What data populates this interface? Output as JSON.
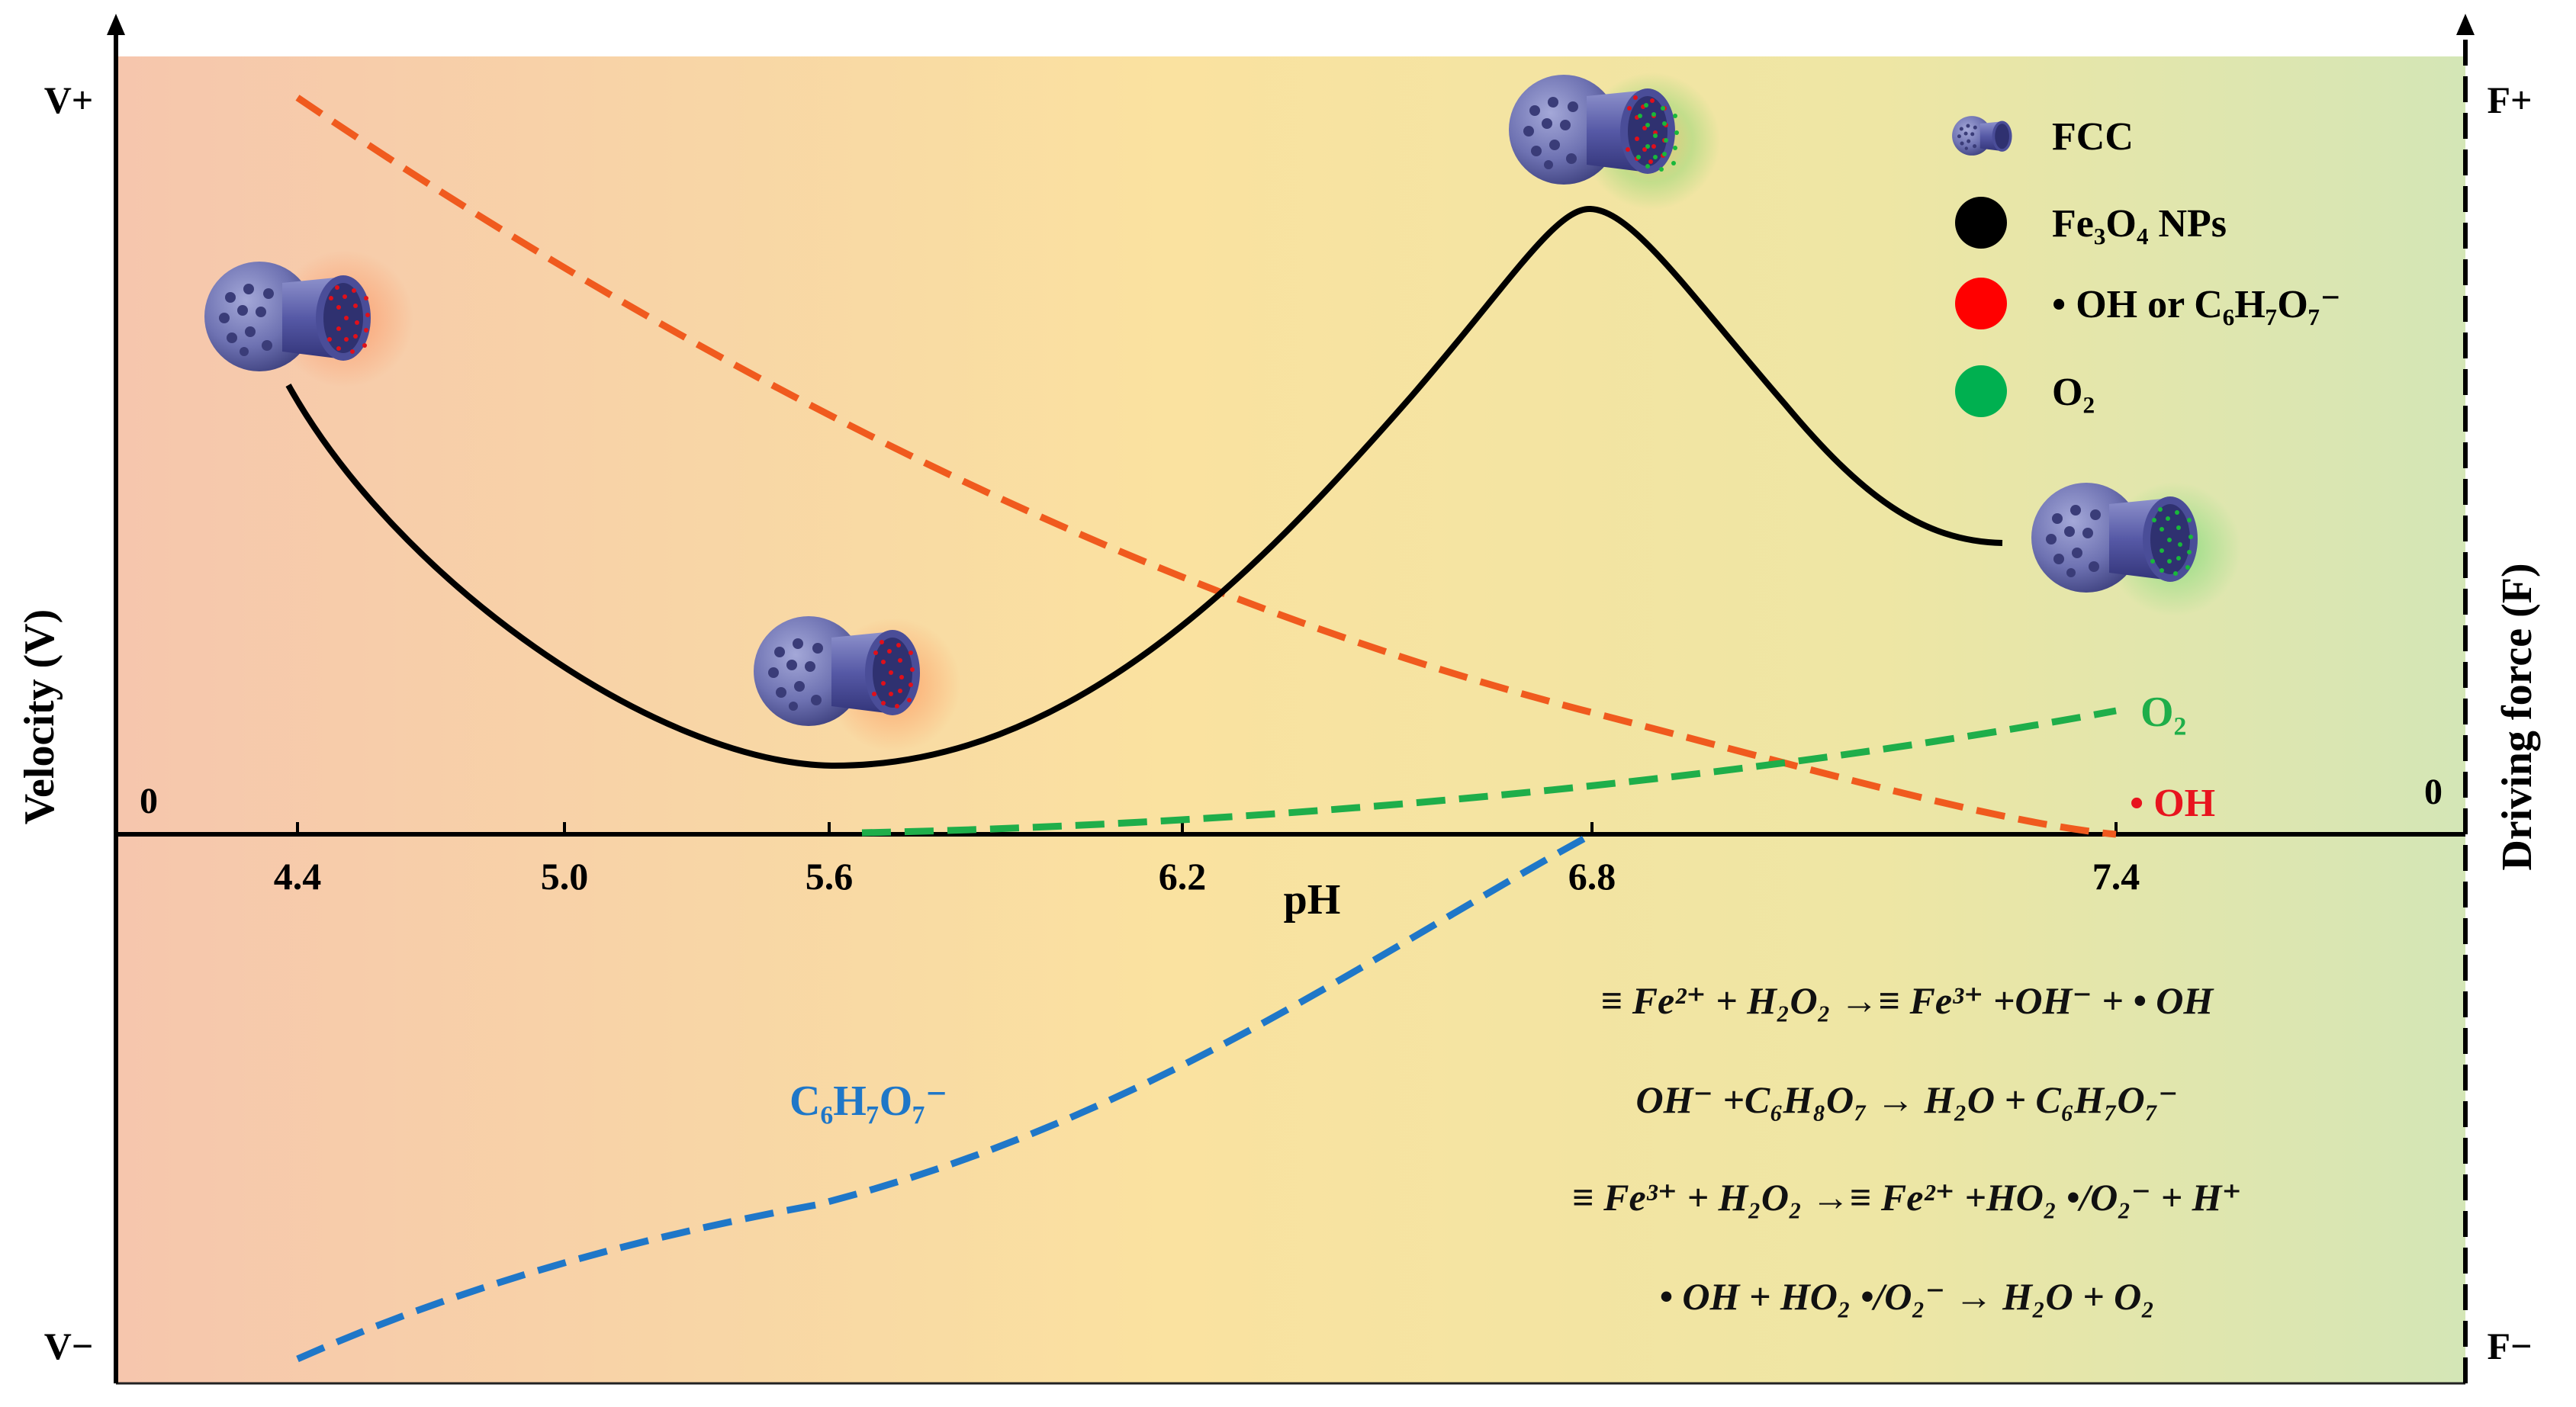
{
  "axes": {
    "y_left_label": "Velocity (V)",
    "y_right_label": "Driving force (F)",
    "x_label": "pH",
    "left_top": "V+",
    "left_bottom": "V−",
    "right_top": "F+",
    "right_bottom": "F−",
    "left_zero": "0",
    "right_zero": "0",
    "x_ticks": [
      "4.4",
      "5.0",
      "5.6",
      "6.2",
      "6.8",
      "7.4"
    ]
  },
  "legend": [
    {
      "label": "FCC",
      "color": "#6b6fb0",
      "icon": "fcc-icon"
    },
    {
      "label": "Fe₃O₄ NPs",
      "color": "#000000",
      "icon": "black-dot-icon"
    },
    {
      "label": "• OH  or C₆H₇O₇⁻",
      "color": "#ff0000",
      "icon": "red-dot-icon"
    },
    {
      "label": "O₂",
      "color": "#00b050",
      "icon": "green-dot-icon"
    }
  ],
  "curve_labels": {
    "o2": "O₂",
    "oh": "• OH",
    "citrate": "C₆H₇O₇⁻"
  },
  "equations": [
    "≡ Fe²⁺ + H₂O₂ →≡ Fe³⁺ +OH⁻ + • OH",
    "OH⁻ +C₆H₈O₇ → H₂O + C₆H₇O₇⁻",
    "≡ Fe³⁺ + H₂O₂ →≡ Fe²⁺ +HO₂ •/O₂⁻ + H⁺",
    "• OH + HO₂ •/O₂⁻ → H₂O + O₂"
  ],
  "colors": {
    "velocity": "#000000",
    "oh_force": "#f05a1e",
    "o2_force": "#1fae4a",
    "citrate_force": "#1f77c8",
    "oh_text": "#e8141e",
    "motor": "#6b6fb0"
  }
}
